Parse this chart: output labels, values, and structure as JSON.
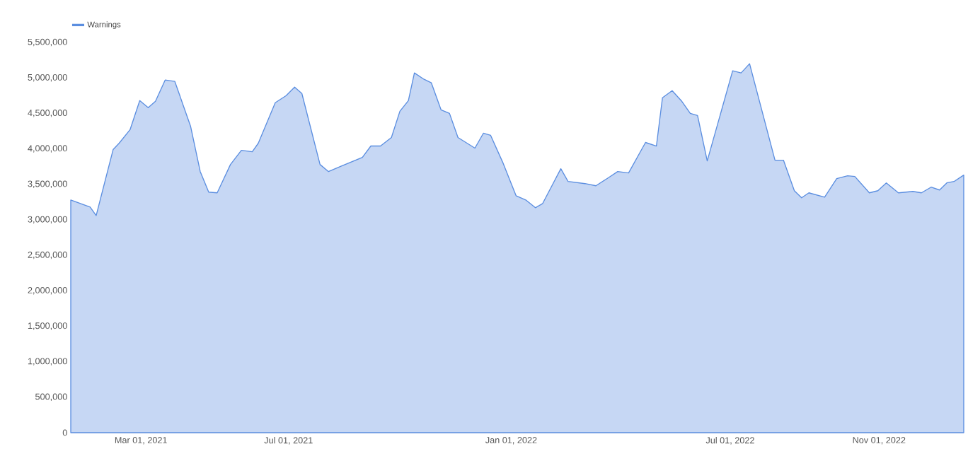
{
  "chart_data": {
    "type": "area",
    "x": [
      "2021-01-02",
      "2021-01-18",
      "2021-01-23",
      "2021-02-06",
      "2021-02-11",
      "2021-02-20",
      "2021-02-28",
      "2021-03-07",
      "2021-03-13",
      "2021-03-21",
      "2021-03-29",
      "2021-04-11",
      "2021-04-19",
      "2021-04-26",
      "2021-05-03",
      "2021-05-14",
      "2021-05-23",
      "2021-06-01",
      "2021-06-06",
      "2021-06-20",
      "2021-06-29",
      "2021-07-06",
      "2021-07-12",
      "2021-07-27",
      "2021-08-03",
      "2021-08-14",
      "2021-08-31",
      "2021-09-07",
      "2021-09-15",
      "2021-09-24",
      "2021-10-01",
      "2021-10-08",
      "2021-10-13",
      "2021-10-21",
      "2021-10-27",
      "2021-11-04",
      "2021-11-11",
      "2021-11-18",
      "2021-12-02",
      "2021-12-09",
      "2021-12-15",
      "2021-12-25",
      "2022-01-05",
      "2022-01-13",
      "2022-01-21",
      "2022-01-27",
      "2022-02-11",
      "2022-02-17",
      "2022-03-03",
      "2022-03-12",
      "2022-03-22",
      "2022-03-30",
      "2022-04-08",
      "2022-04-22",
      "2022-05-01",
      "2022-05-06",
      "2022-05-14",
      "2022-05-22",
      "2022-05-29",
      "2022-06-04",
      "2022-06-12",
      "2022-07-03",
      "2022-07-10",
      "2022-07-17",
      "2022-08-07",
      "2022-08-14",
      "2022-08-23",
      "2022-08-29",
      "2022-09-04",
      "2022-09-17",
      "2022-09-27",
      "2022-10-06",
      "2022-10-12",
      "2022-10-24",
      "2022-10-31",
      "2022-11-07",
      "2022-11-17",
      "2022-11-29",
      "2022-12-06",
      "2022-12-14",
      "2022-12-21",
      "2022-12-27",
      "2023-01-02",
      "2023-01-10"
    ],
    "series": [
      {
        "name": "Warnings",
        "color": "#5b8ee0",
        "values": [
          3280000,
          3180000,
          3060000,
          3990000,
          4080000,
          4270000,
          4680000,
          4580000,
          4670000,
          4970000,
          4950000,
          4320000,
          3680000,
          3390000,
          3380000,
          3780000,
          3980000,
          3960000,
          4080000,
          4650000,
          4750000,
          4870000,
          4780000,
          3780000,
          3680000,
          3760000,
          3880000,
          4040000,
          4040000,
          4160000,
          4530000,
          4680000,
          5070000,
          4980000,
          4930000,
          4550000,
          4500000,
          4160000,
          4010000,
          4220000,
          4190000,
          3810000,
          3340000,
          3280000,
          3170000,
          3230000,
          3720000,
          3540000,
          3510000,
          3480000,
          3590000,
          3680000,
          3660000,
          4090000,
          4040000,
          4720000,
          4820000,
          4670000,
          4500000,
          4470000,
          3830000,
          5100000,
          5070000,
          5200000,
          3840000,
          3840000,
          3410000,
          3310000,
          3380000,
          3320000,
          3580000,
          3620000,
          3610000,
          3380000,
          3410000,
          3520000,
          3380000,
          3400000,
          3380000,
          3460000,
          3420000,
          3520000,
          3540000,
          3630000
        ]
      }
    ],
    "xlim": [
      "2021-01-02",
      "2023-01-10"
    ],
    "xticks": [
      {
        "value": "2021-03-01",
        "label": "Mar 01, 2021"
      },
      {
        "value": "2021-07-01",
        "label": "Jul 01, 2021"
      },
      {
        "value": "2022-01-01",
        "label": "Jan 01, 2022"
      },
      {
        "value": "2022-07-01",
        "label": "Jul 01, 2022"
      },
      {
        "value": "2022-11-01",
        "label": "Nov 01, 2022"
      }
    ],
    "ylim": [
      0,
      5500000
    ],
    "yticks": [
      0,
      {
        "value": 500000,
        "label": "500,000"
      },
      {
        "value": 1000000,
        "label": "1,000,000"
      },
      {
        "value": 1500000,
        "label": "1,500,000"
      },
      {
        "value": 2000000,
        "label": "2,000,000"
      },
      {
        "value": 2500000,
        "label": "2,500,000"
      },
      {
        "value": 3000000,
        "label": "3,000,000"
      },
      {
        "value": 3500000,
        "label": "3,500,000"
      },
      {
        "value": 4000000,
        "label": "4,000,000"
      },
      {
        "value": 4500000,
        "label": "4,500,000"
      },
      {
        "value": 5000000,
        "label": "5,000,000"
      },
      {
        "value": 5500000,
        "label": "5,500,000"
      }
    ],
    "legend": "top left",
    "line_style": "solid",
    "marker": "none",
    "grid": false
  }
}
